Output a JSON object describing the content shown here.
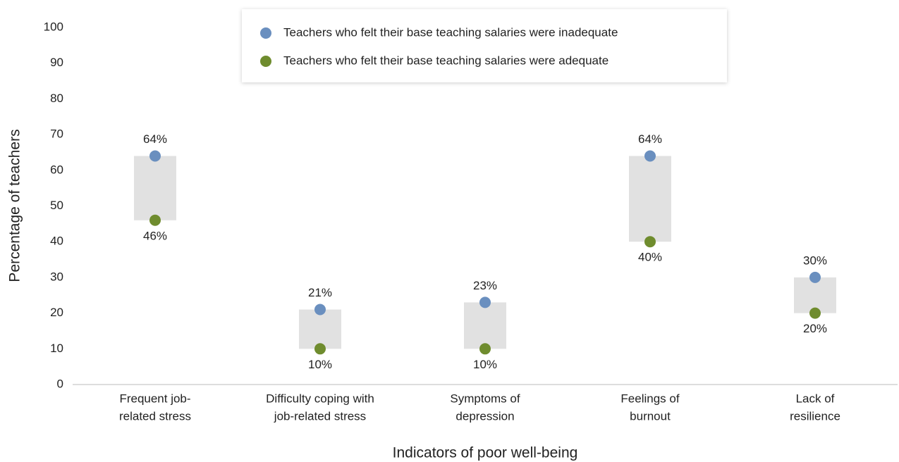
{
  "chart_data": {
    "type": "dot_range",
    "x_label": "Indicators of poor well-being",
    "y_label": "Percentage of teachers",
    "categories": [
      [
        "Frequent job-",
        "related stress"
      ],
      [
        "Difficulty coping with",
        "job-related stress"
      ],
      [
        "Symptoms of",
        "depression"
      ],
      [
        "Feelings of",
        "burnout"
      ],
      [
        "Lack of",
        "resilience"
      ]
    ],
    "series": [
      {
        "name": "Teachers who felt their base teaching salaries were inadequate",
        "color": "#6a8fbf",
        "values": [
          64,
          21,
          23,
          64,
          30
        ],
        "value_labels": [
          "64%",
          "21%",
          "23%",
          "64%",
          "30%"
        ]
      },
      {
        "name": "Teachers who felt their base teaching salaries were adequate",
        "color": "#6f8c2e",
        "values": [
          46,
          10,
          10,
          40,
          20
        ],
        "value_labels": [
          "46%",
          "10%",
          "10%",
          "40%",
          "20%"
        ]
      }
    ],
    "range_color": "#e1e1e1",
    "ylim": [
      0,
      100
    ],
    "yticks": [
      0,
      10,
      20,
      30,
      40,
      50,
      60,
      70,
      80,
      90,
      100
    ],
    "grid": false,
    "legend": "top"
  }
}
